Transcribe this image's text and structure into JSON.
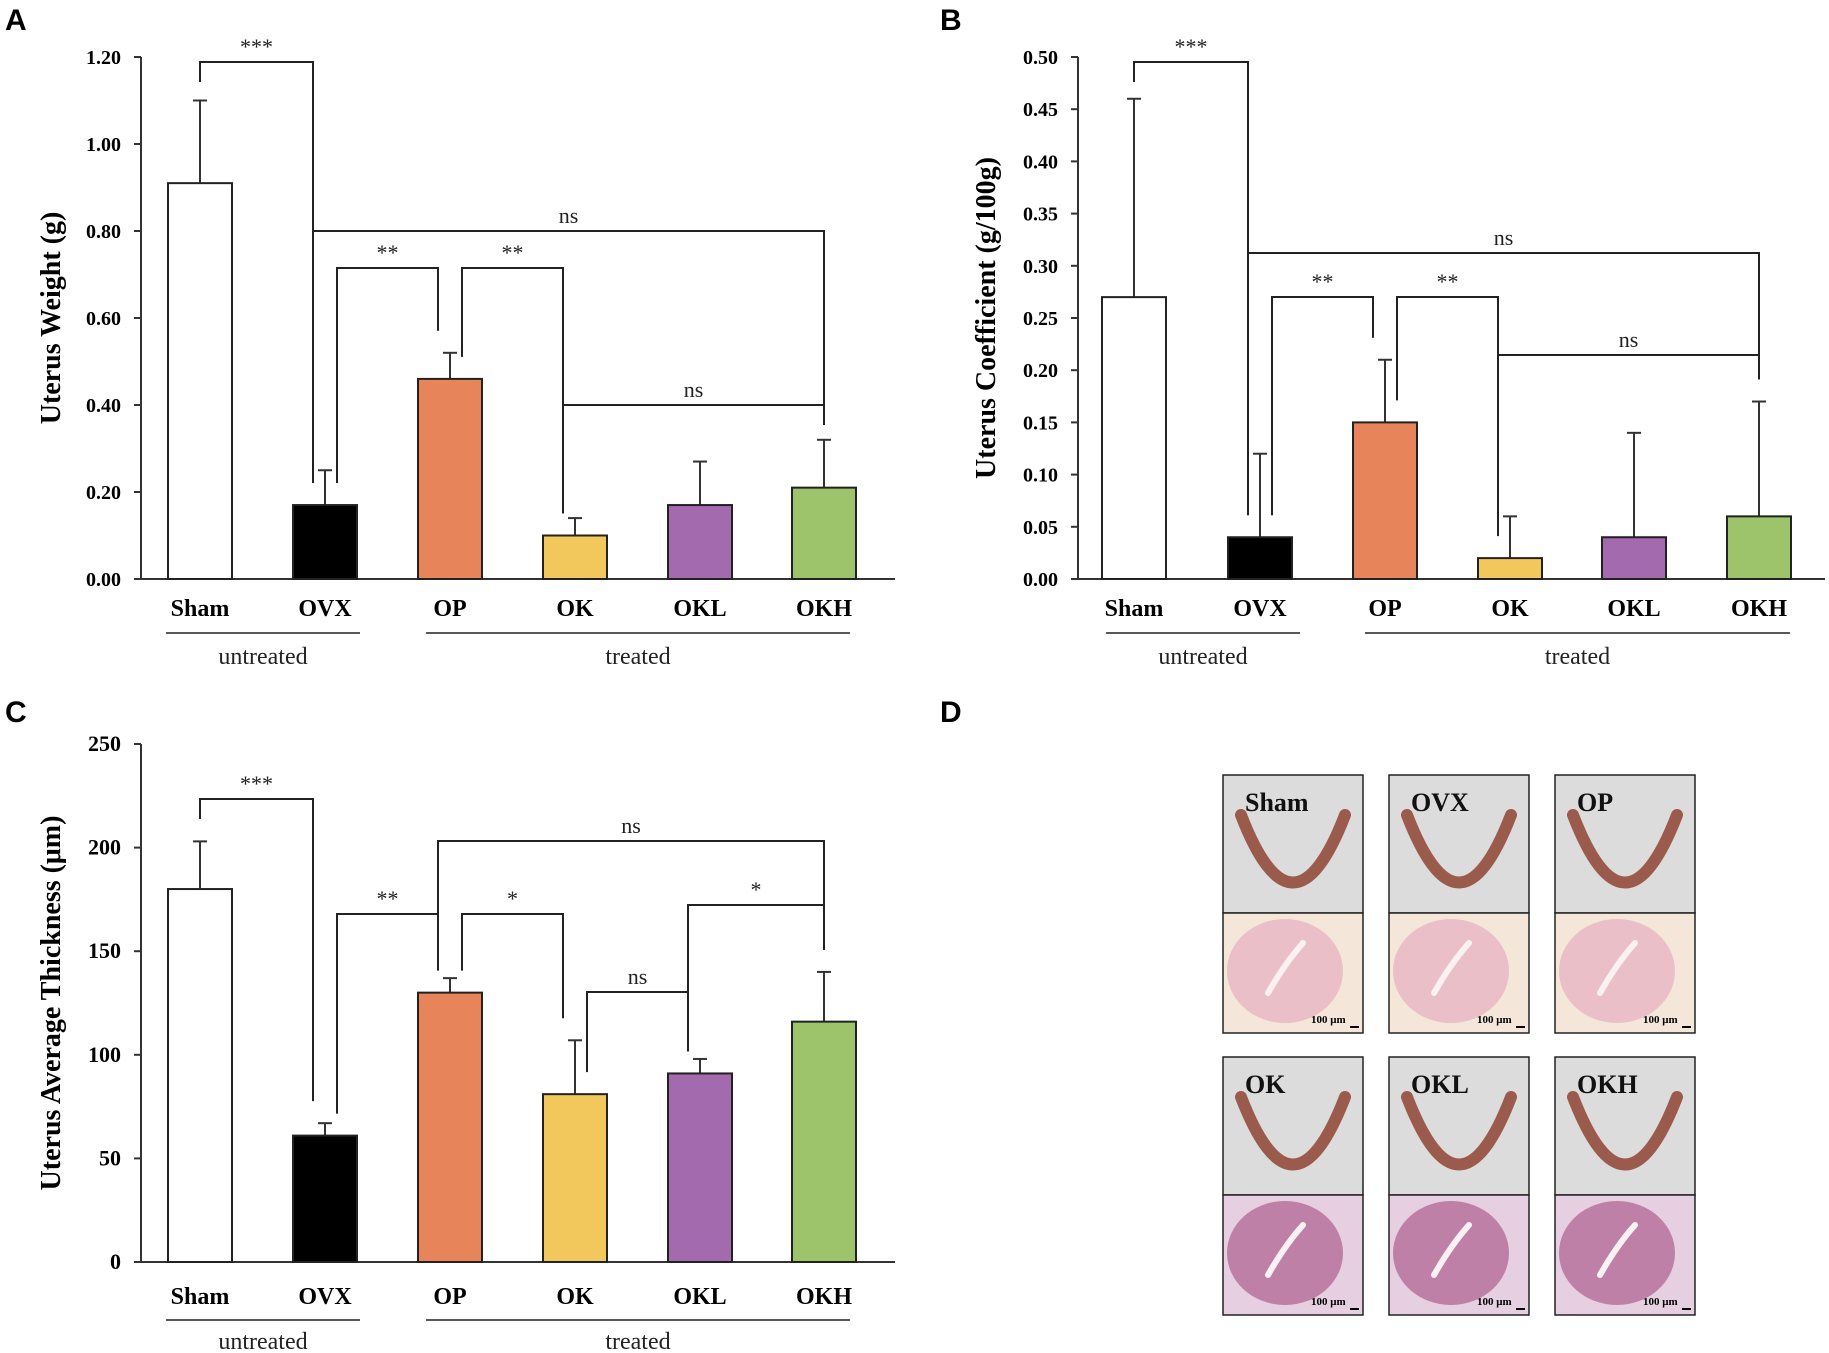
{
  "panels": {
    "a": "A",
    "b": "B",
    "c": "C",
    "d": "D"
  },
  "colors": {
    "Sham": "#ffffff",
    "OVX": "#000000",
    "OP": "#e8845a",
    "OK": "#f2c75c",
    "OKL": "#a46aae",
    "OKH": "#9dc46a"
  },
  "chart_data": [
    {
      "id": "A",
      "type": "bar",
      "title": "",
      "ylabel": "Uterus Weight (g)",
      "xlabel": "",
      "categories": [
        "Sham",
        "OVX",
        "OP",
        "OK",
        "OKL",
        "OKH"
      ],
      "values": [
        0.91,
        0.17,
        0.46,
        0.1,
        0.17,
        0.21
      ],
      "errors": [
        0.19,
        0.08,
        0.06,
        0.04,
        0.1,
        0.11
      ],
      "ylim": [
        0,
        1.2
      ],
      "yticks": [
        "0.00",
        "0.20",
        "0.40",
        "0.60",
        "0.80",
        "1.00",
        "1.20"
      ],
      "groups": [
        {
          "label": "untreated",
          "from": 0,
          "to": 1
        },
        {
          "label": "treated",
          "from": 2,
          "to": 5
        }
      ],
      "brackets": [
        {
          "i": 0,
          "j": 1,
          "label": "***"
        },
        {
          "i": 1,
          "j": 5,
          "label": "ns"
        },
        {
          "i": 1,
          "j": 2,
          "label": "**"
        },
        {
          "i": 2,
          "j": 3,
          "label": "**"
        },
        {
          "i": 3,
          "j": 5,
          "label": "ns"
        }
      ]
    },
    {
      "id": "B",
      "type": "bar",
      "title": "",
      "ylabel": "Uterus Coefficient (g/100g)",
      "xlabel": "",
      "categories": [
        "Sham",
        "OVX",
        "OP",
        "OK",
        "OKL",
        "OKH"
      ],
      "values": [
        0.27,
        0.04,
        0.15,
        0.02,
        0.04,
        0.06
      ],
      "errors": [
        0.19,
        0.08,
        0.06,
        0.04,
        0.1,
        0.11
      ],
      "ylim": [
        0,
        0.5
      ],
      "yticks": [
        "0.00",
        "0.05",
        "0.10",
        "0.15",
        "0.20",
        "0.25",
        "0.30",
        "0.35",
        "0.40",
        "0.45",
        "0.50"
      ],
      "groups": [
        {
          "label": "untreated",
          "from": 0,
          "to": 1
        },
        {
          "label": "treated",
          "from": 2,
          "to": 5
        }
      ],
      "brackets": [
        {
          "i": 0,
          "j": 1,
          "label": "***"
        },
        {
          "i": 1,
          "j": 5,
          "label": "ns"
        },
        {
          "i": 1,
          "j": 2,
          "label": "**"
        },
        {
          "i": 2,
          "j": 3,
          "label": "**"
        },
        {
          "i": 3,
          "j": 5,
          "label": "ns"
        }
      ]
    },
    {
      "id": "C",
      "type": "bar",
      "title": "",
      "ylabel": "Uterus Average Thickness (μm)",
      "xlabel": "",
      "categories": [
        "Sham",
        "OVX",
        "OP",
        "OK",
        "OKL",
        "OKH"
      ],
      "values": [
        180,
        61,
        130,
        81,
        91,
        116
      ],
      "errors": [
        23,
        6,
        7,
        26,
        7,
        24
      ],
      "ylim": [
        0,
        250
      ],
      "yticks": [
        "0",
        "50",
        "100",
        "150",
        "200",
        "250"
      ],
      "groups": [
        {
          "label": "untreated",
          "from": 0,
          "to": 1
        },
        {
          "label": "treated",
          "from": 2,
          "to": 5
        }
      ],
      "brackets": [
        {
          "i": 0,
          "j": 1,
          "label": "***"
        },
        {
          "i": 2,
          "j": 5,
          "label": "ns"
        },
        {
          "i": 1,
          "j": 2,
          "label": "**"
        },
        {
          "i": 2,
          "j": 3,
          "label": "*"
        },
        {
          "i": 3,
          "j": 4,
          "label": "ns"
        },
        {
          "i": 4,
          "j": 5,
          "label": "*"
        }
      ]
    }
  ],
  "photos": {
    "labels": [
      "Sham",
      "OVX",
      "OP",
      "OK",
      "OKL",
      "OKH"
    ],
    "scale_label": "100 μm"
  }
}
